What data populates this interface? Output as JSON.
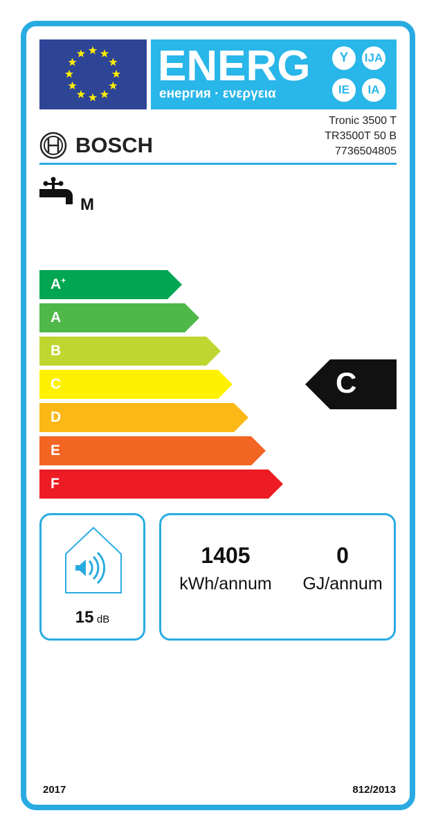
{
  "header": {
    "energy_word": "ENERG",
    "energy_subtitle": "енергия · ενεργεια",
    "language_suffixes": [
      "Y",
      "IJA",
      "IE",
      "IA"
    ]
  },
  "supplier": {
    "brand": "BOSCH",
    "model_lines": [
      "Tronic 3500 T",
      "TR3500T 50 B",
      "7736504805"
    ]
  },
  "load_profile": "M",
  "scale": {
    "classes": [
      {
        "label": "A",
        "sup": "+",
        "color": "#00a651"
      },
      {
        "label": "A",
        "sup": "",
        "color": "#4fb848"
      },
      {
        "label": "B",
        "sup": "",
        "color": "#bed630"
      },
      {
        "label": "C",
        "sup": "",
        "color": "#fff200"
      },
      {
        "label": "D",
        "sup": "",
        "color": "#fbb817"
      },
      {
        "label": "E",
        "sup": "",
        "color": "#f26522"
      },
      {
        "label": "F",
        "sup": "",
        "color": "#ed1c24"
      }
    ],
    "rating": "C",
    "rating_index": 3
  },
  "noise": {
    "value": "15",
    "unit": "dB"
  },
  "consumption": {
    "electricity_value": "1405",
    "electricity_unit": "kWh/annum",
    "fuel_value": "0",
    "fuel_unit": "GJ/annum"
  },
  "footer": {
    "year": "2017",
    "regulation": "812/2013"
  },
  "colors": {
    "accent": "#29abe2",
    "eu_blue": "#2e4596",
    "star": "#ffed00"
  }
}
